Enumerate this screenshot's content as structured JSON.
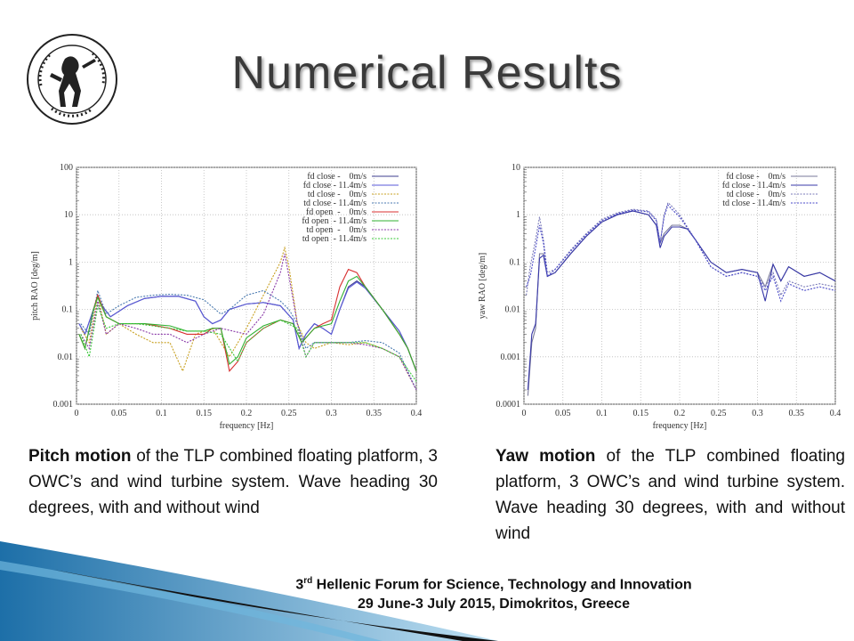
{
  "title": "Numerical Results",
  "logo": {
    "name": "seal-logo",
    "color": "#222222"
  },
  "captions": {
    "pitch": {
      "bold": "Pitch motion",
      "rest": " of the TLP combined floating platform, 3 OWC’s and wind turbine system. Wave heading 30 degrees, with and without wind"
    },
    "yaw": {
      "bold": "Yaw motion",
      "rest": " of the TLP combined floating platform, 3 OWC’s and wind turbine system. Wave heading 30 degrees, with and without wind"
    }
  },
  "footer": {
    "line1_pre": "3",
    "line1_sup": "rd",
    "line1_rest": " Hellenic Forum for Science, Technology and Innovation",
    "line2": "29 June-3 July 2015, Dimokritos, Greece"
  },
  "chart_data": [
    {
      "type": "line",
      "title": "",
      "xlabel": "frequency [Hz]",
      "ylabel": "pitch RAO [deg/m]",
      "xlim": [
        0,
        0.4
      ],
      "ylim": [
        0.001,
        100
      ],
      "yscale": "log",
      "xticks": [
        "0",
        "0.05",
        "0.1",
        "0.15",
        "0.2",
        "0.25",
        "0.3",
        "0.35",
        "0.4"
      ],
      "yticks": [
        "0.001",
        "0.01",
        "0.1",
        "1",
        "10",
        "100"
      ],
      "grid": true,
      "legend": "top-right",
      "series": [
        {
          "name": "fd close -    0m/s",
          "color": "#3d3d8f",
          "dash": "solid",
          "x": [
            0.003,
            0.01,
            0.02,
            0.025,
            0.03,
            0.04,
            0.06,
            0.08,
            0.1,
            0.12,
            0.14,
            0.15,
            0.16,
            0.17,
            0.18,
            0.2,
            0.22,
            0.24,
            0.255,
            0.262,
            0.27,
            0.28,
            0.29,
            0.3,
            0.31,
            0.32,
            0.33,
            0.34,
            0.36,
            0.38,
            0.39,
            0.4
          ],
          "y": [
            0.05,
            0.03,
            0.1,
            0.2,
            0.12,
            0.07,
            0.12,
            0.17,
            0.19,
            0.19,
            0.15,
            0.07,
            0.05,
            0.06,
            0.1,
            0.13,
            0.14,
            0.12,
            0.06,
            0.015,
            0.03,
            0.05,
            0.04,
            0.03,
            0.1,
            0.3,
            0.4,
            0.3,
            0.1,
            0.035,
            0.015,
            0.005
          ]
        },
        {
          "name": "fd close - 11.4m/s",
          "color": "#5a5ad8",
          "dash": "solid",
          "x": [
            0.003,
            0.01,
            0.02,
            0.025,
            0.03,
            0.04,
            0.06,
            0.08,
            0.1,
            0.12,
            0.14,
            0.15,
            0.16,
            0.17,
            0.18,
            0.2,
            0.22,
            0.24,
            0.255,
            0.262,
            0.27,
            0.28,
            0.29,
            0.3,
            0.31,
            0.32,
            0.33,
            0.34,
            0.36,
            0.38,
            0.39,
            0.4
          ],
          "y": [
            0.05,
            0.03,
            0.1,
            0.19,
            0.12,
            0.07,
            0.12,
            0.17,
            0.19,
            0.19,
            0.15,
            0.07,
            0.05,
            0.06,
            0.1,
            0.13,
            0.14,
            0.12,
            0.06,
            0.015,
            0.03,
            0.05,
            0.04,
            0.03,
            0.1,
            0.28,
            0.38,
            0.28,
            0.1,
            0.035,
            0.015,
            0.005
          ]
        },
        {
          "name": "td close -    0m/s",
          "color": "#c8a020",
          "dash": "dot",
          "x": [
            0.005,
            0.015,
            0.025,
            0.035,
            0.05,
            0.07,
            0.09,
            0.11,
            0.125,
            0.14,
            0.16,
            0.18,
            0.2,
            0.22,
            0.24,
            0.245,
            0.25,
            0.26,
            0.27,
            0.28,
            0.3,
            0.32,
            0.34,
            0.36,
            0.38,
            0.4
          ],
          "y": [
            0.04,
            0.02,
            0.2,
            0.03,
            0.05,
            0.03,
            0.02,
            0.02,
            0.005,
            0.03,
            0.04,
            0.01,
            0.04,
            0.2,
            1.0,
            2.0,
            0.8,
            0.05,
            0.02,
            0.015,
            0.02,
            0.018,
            0.02,
            0.015,
            0.01,
            0.002
          ]
        },
        {
          "name": "td close - 11.4m/s",
          "color": "#4a7ab0",
          "dash": "dot",
          "x": [
            0.005,
            0.015,
            0.025,
            0.035,
            0.05,
            0.07,
            0.09,
            0.11,
            0.13,
            0.15,
            0.17,
            0.18,
            0.2,
            0.22,
            0.24,
            0.25,
            0.26,
            0.27,
            0.28,
            0.3,
            0.32,
            0.34,
            0.36,
            0.38,
            0.4
          ],
          "y": [
            0.05,
            0.03,
            0.25,
            0.08,
            0.12,
            0.18,
            0.2,
            0.21,
            0.2,
            0.16,
            0.08,
            0.1,
            0.2,
            0.25,
            0.15,
            0.1,
            0.05,
            0.015,
            0.02,
            0.02,
            0.02,
            0.022,
            0.02,
            0.012,
            0.002
          ]
        },
        {
          "name": "fd open  -    0m/s",
          "color": "#d83030",
          "dash": "solid",
          "x": [
            0.003,
            0.01,
            0.02,
            0.025,
            0.035,
            0.05,
            0.08,
            0.11,
            0.13,
            0.15,
            0.16,
            0.17,
            0.18,
            0.19,
            0.2,
            0.22,
            0.24,
            0.255,
            0.265,
            0.28,
            0.29,
            0.3,
            0.31,
            0.32,
            0.33,
            0.34,
            0.36,
            0.38,
            0.39,
            0.4
          ],
          "y": [
            0.03,
            0.015,
            0.1,
            0.2,
            0.07,
            0.05,
            0.05,
            0.04,
            0.03,
            0.03,
            0.04,
            0.04,
            0.005,
            0.008,
            0.02,
            0.04,
            0.06,
            0.05,
            0.02,
            0.04,
            0.05,
            0.06,
            0.3,
            0.7,
            0.6,
            0.3,
            0.1,
            0.03,
            0.015,
            0.005
          ]
        },
        {
          "name": "fd open  - 11.4m/s",
          "color": "#30b030",
          "dash": "solid",
          "x": [
            0.003,
            0.01,
            0.02,
            0.025,
            0.035,
            0.05,
            0.08,
            0.11,
            0.13,
            0.15,
            0.16,
            0.17,
            0.18,
            0.19,
            0.2,
            0.22,
            0.24,
            0.255,
            0.265,
            0.28,
            0.29,
            0.3,
            0.31,
            0.32,
            0.33,
            0.34,
            0.36,
            0.38,
            0.39,
            0.4
          ],
          "y": [
            0.03,
            0.015,
            0.1,
            0.18,
            0.07,
            0.05,
            0.05,
            0.045,
            0.035,
            0.035,
            0.04,
            0.04,
            0.007,
            0.01,
            0.025,
            0.045,
            0.06,
            0.05,
            0.02,
            0.04,
            0.045,
            0.05,
            0.15,
            0.4,
            0.5,
            0.3,
            0.1,
            0.03,
            0.015,
            0.005
          ]
        },
        {
          "name": "td open  -    0m/s",
          "color": "#8a3aa8",
          "dash": "dot",
          "x": [
            0.005,
            0.015,
            0.025,
            0.035,
            0.05,
            0.07,
            0.09,
            0.11,
            0.13,
            0.15,
            0.17,
            0.2,
            0.22,
            0.24,
            0.245,
            0.25,
            0.26,
            0.27,
            0.28,
            0.3,
            0.32,
            0.34,
            0.36,
            0.38,
            0.4
          ],
          "y": [
            0.03,
            0.015,
            0.15,
            0.03,
            0.05,
            0.04,
            0.03,
            0.03,
            0.02,
            0.03,
            0.04,
            0.03,
            0.08,
            0.6,
            1.5,
            0.5,
            0.05,
            0.01,
            0.02,
            0.02,
            0.02,
            0.018,
            0.015,
            0.01,
            0.002
          ]
        },
        {
          "name": "td open  - 11.4m/s",
          "color": "#3ac83a",
          "dash": "dot",
          "x": [
            0.005,
            0.015,
            0.025,
            0.035,
            0.05,
            0.07,
            0.09,
            0.11,
            0.13,
            0.15,
            0.17,
            0.19,
            0.2,
            0.22,
            0.24,
            0.26,
            0.27,
            0.28,
            0.3,
            0.32,
            0.34,
            0.36,
            0.38,
            0.4
          ],
          "y": [
            0.03,
            0.01,
            0.12,
            0.04,
            0.05,
            0.05,
            0.045,
            0.04,
            0.035,
            0.035,
            0.03,
            0.008,
            0.02,
            0.04,
            0.06,
            0.04,
            0.01,
            0.02,
            0.02,
            0.02,
            0.02,
            0.015,
            0.01,
            0.003
          ]
        }
      ]
    },
    {
      "type": "line",
      "title": "",
      "xlabel": "frequency [Hz]",
      "ylabel": "yaw RAO [deg/m]",
      "xlim": [
        0,
        0.4
      ],
      "ylim": [
        0.0001,
        10
      ],
      "yscale": "log",
      "xticks": [
        "0",
        "0.05",
        "0.1",
        "0.15",
        "0.2",
        "0.25",
        "0.3",
        "0.35",
        "0.4"
      ],
      "yticks": [
        "0.0001",
        "0.001",
        "0.01",
        "0.1",
        "1",
        "10"
      ],
      "grid": true,
      "legend": "top-right",
      "series": [
        {
          "name": "fd close -    0m/s",
          "color": "#7a7a9a",
          "dash": "solid",
          "x": [
            0.005,
            0.01,
            0.015,
            0.02,
            0.025,
            0.03,
            0.04,
            0.06,
            0.08,
            0.1,
            0.12,
            0.14,
            0.16,
            0.17,
            0.175,
            0.18,
            0.19,
            0.2,
            0.21,
            0.22,
            0.24,
            0.26,
            0.28,
            0.3,
            0.31,
            0.32,
            0.33,
            0.34,
            0.36,
            0.38,
            0.4
          ],
          "y": [
            0.00015,
            0.002,
            0.004,
            0.15,
            0.15,
            0.05,
            0.06,
            0.15,
            0.35,
            0.7,
            1.0,
            1.2,
            1.0,
            0.6,
            0.25,
            0.4,
            0.6,
            0.6,
            0.5,
            0.3,
            0.1,
            0.06,
            0.07,
            0.06,
            0.03,
            0.09,
            0.04,
            0.08,
            0.05,
            0.06,
            0.04
          ]
        },
        {
          "name": "fd close - 11.4m/s",
          "color": "#3838a8",
          "dash": "solid",
          "x": [
            0.005,
            0.01,
            0.015,
            0.02,
            0.025,
            0.03,
            0.04,
            0.06,
            0.08,
            0.1,
            0.12,
            0.14,
            0.16,
            0.17,
            0.175,
            0.18,
            0.19,
            0.2,
            0.21,
            0.22,
            0.24,
            0.26,
            0.28,
            0.3,
            0.31,
            0.32,
            0.33,
            0.34,
            0.36,
            0.38,
            0.4
          ],
          "y": [
            0.0002,
            0.003,
            0.005,
            0.12,
            0.14,
            0.05,
            0.06,
            0.15,
            0.35,
            0.7,
            1.0,
            1.2,
            1.0,
            0.6,
            0.2,
            0.35,
            0.55,
            0.55,
            0.5,
            0.3,
            0.1,
            0.06,
            0.07,
            0.06,
            0.015,
            0.09,
            0.04,
            0.08,
            0.05,
            0.06,
            0.04
          ]
        },
        {
          "name": "td close -    0m/s",
          "color": "#7a7ab8",
          "dash": "dot",
          "x": [
            0.003,
            0.008,
            0.015,
            0.02,
            0.025,
            0.03,
            0.04,
            0.06,
            0.08,
            0.1,
            0.12,
            0.14,
            0.16,
            0.17,
            0.175,
            0.18,
            0.185,
            0.19,
            0.2,
            0.22,
            0.24,
            0.26,
            0.28,
            0.3,
            0.31,
            0.32,
            0.33,
            0.34,
            0.36,
            0.38,
            0.4
          ],
          "y": [
            0.02,
            0.08,
            0.3,
            0.9,
            0.3,
            0.06,
            0.07,
            0.18,
            0.4,
            0.8,
            1.1,
            1.3,
            1.2,
            0.8,
            0.25,
            1.0,
            1.8,
            1.5,
            1.0,
            0.3,
            0.08,
            0.05,
            0.06,
            0.05,
            0.03,
            0.06,
            0.02,
            0.04,
            0.03,
            0.035,
            0.03
          ]
        },
        {
          "name": "td close - 11.4m/s",
          "color": "#4a4ac8",
          "dash": "dot",
          "x": [
            0.003,
            0.008,
            0.015,
            0.02,
            0.025,
            0.03,
            0.04,
            0.06,
            0.08,
            0.1,
            0.12,
            0.14,
            0.16,
            0.17,
            0.175,
            0.18,
            0.185,
            0.19,
            0.2,
            0.22,
            0.24,
            0.26,
            0.28,
            0.3,
            0.31,
            0.32,
            0.33,
            0.34,
            0.36,
            0.38,
            0.4
          ],
          "y": [
            0.03,
            0.05,
            0.2,
            0.6,
            0.25,
            0.05,
            0.07,
            0.17,
            0.38,
            0.75,
            1.05,
            1.25,
            1.15,
            0.75,
            0.25,
            0.9,
            1.6,
            1.3,
            0.9,
            0.3,
            0.08,
            0.05,
            0.06,
            0.05,
            0.025,
            0.05,
            0.015,
            0.035,
            0.025,
            0.03,
            0.025
          ]
        }
      ]
    }
  ]
}
